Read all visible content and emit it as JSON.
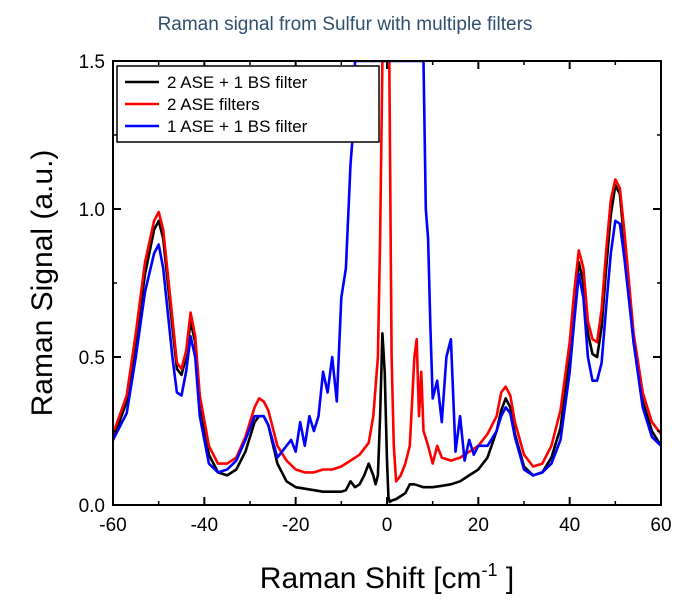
{
  "chart_data": {
    "type": "line",
    "title": "Raman signal from Sulfur with multiple filters",
    "xlabel_main": "Raman Shift [cm",
    "xlabel_sup": "-1",
    "xlabel_close": " ]",
    "ylabel": "Raman Signal (a.u.)",
    "xlim": [
      -60,
      60
    ],
    "ylim": [
      0.0,
      1.5
    ],
    "xticks": [
      -60,
      -40,
      -20,
      0,
      20,
      40,
      60
    ],
    "xtick_labels": [
      "-60",
      "-40",
      "-20",
      "0",
      "20",
      "40",
      "60"
    ],
    "yticks": [
      0.0,
      0.5,
      1.0,
      1.5
    ],
    "ytick_labels": [
      "0.0",
      "0.5",
      "1.0",
      "1.5"
    ],
    "grid": false,
    "legend_position": "top-left",
    "series": [
      {
        "name": "2 ASE + 1 BS filter",
        "color": "#000000",
        "x": [
          -60,
          -57,
          -55,
          -53,
          -51,
          -50,
          -49,
          -47,
          -46,
          -45,
          -44,
          -43,
          -42,
          -41,
          -39,
          -37,
          -35,
          -33,
          -31,
          -29,
          -28,
          -27,
          -26,
          -24,
          -22,
          -20,
          -18,
          -16,
          -14,
          -12,
          -10,
          -9,
          -8,
          -7,
          -6,
          -5,
          -4,
          -3,
          -2.5,
          -2,
          -1.5,
          -1,
          -0.5,
          0,
          0.3,
          0.6,
          1,
          2,
          3,
          4,
          5,
          6,
          7,
          8,
          10,
          12,
          14,
          16,
          18,
          20,
          22,
          24,
          25,
          26,
          27,
          28,
          30,
          32,
          34,
          36,
          38,
          40,
          41,
          42,
          43,
          44,
          45,
          46,
          47,
          48,
          49,
          50,
          51,
          52,
          54,
          56,
          58,
          60
        ],
        "y": [
          0.22,
          0.35,
          0.55,
          0.78,
          0.93,
          0.96,
          0.9,
          0.6,
          0.46,
          0.44,
          0.5,
          0.62,
          0.55,
          0.35,
          0.17,
          0.11,
          0.1,
          0.12,
          0.18,
          0.28,
          0.3,
          0.3,
          0.27,
          0.14,
          0.08,
          0.06,
          0.055,
          0.05,
          0.045,
          0.045,
          0.045,
          0.05,
          0.08,
          0.06,
          0.07,
          0.1,
          0.14,
          0.1,
          0.07,
          0.1,
          0.3,
          0.58,
          0.45,
          0.15,
          0.03,
          0.01,
          0.015,
          0.02,
          0.03,
          0.04,
          0.07,
          0.07,
          0.065,
          0.06,
          0.06,
          0.065,
          0.07,
          0.08,
          0.1,
          0.12,
          0.16,
          0.25,
          0.32,
          0.36,
          0.33,
          0.24,
          0.13,
          0.1,
          0.11,
          0.16,
          0.26,
          0.5,
          0.68,
          0.82,
          0.75,
          0.58,
          0.51,
          0.5,
          0.6,
          0.8,
          0.98,
          1.08,
          1.05,
          0.88,
          0.55,
          0.35,
          0.25,
          0.2
        ]
      },
      {
        "name": "2 ASE filters",
        "color": "#ff0000",
        "x": [
          -60,
          -57,
          -55,
          -53,
          -51,
          -50,
          -49,
          -47,
          -46,
          -45,
          -44,
          -43,
          -42,
          -41,
          -39,
          -37,
          -35,
          -33,
          -31,
          -29,
          -28,
          -27,
          -26,
          -24,
          -22,
          -20,
          -18,
          -16,
          -14,
          -12,
          -10,
          -8,
          -6,
          -4,
          -3,
          -2,
          -1.5,
          -1,
          -0.5,
          0,
          0.5,
          1,
          1.5,
          2,
          3,
          4,
          5,
          6,
          6.5,
          7,
          7.5,
          8,
          9,
          10,
          11,
          12,
          14,
          16,
          18,
          20,
          22,
          24,
          25,
          26,
          27,
          28,
          30,
          32,
          34,
          36,
          38,
          40,
          41,
          42,
          43,
          44,
          45,
          46,
          47,
          48,
          49,
          50,
          51,
          52,
          54,
          56,
          58,
          60
        ],
        "y": [
          0.24,
          0.37,
          0.58,
          0.82,
          0.96,
          0.99,
          0.93,
          0.63,
          0.48,
          0.46,
          0.52,
          0.65,
          0.57,
          0.37,
          0.2,
          0.14,
          0.14,
          0.16,
          0.23,
          0.33,
          0.36,
          0.35,
          0.32,
          0.2,
          0.15,
          0.12,
          0.11,
          0.11,
          0.12,
          0.12,
          0.13,
          0.15,
          0.17,
          0.21,
          0.3,
          0.5,
          0.9,
          1.5,
          1.5,
          1.5,
          1.5,
          0.5,
          0.2,
          0.08,
          0.1,
          0.14,
          0.2,
          0.5,
          0.56,
          0.3,
          0.45,
          0.25,
          0.2,
          0.14,
          0.2,
          0.16,
          0.15,
          0.16,
          0.18,
          0.2,
          0.24,
          0.3,
          0.38,
          0.4,
          0.37,
          0.28,
          0.17,
          0.13,
          0.14,
          0.2,
          0.32,
          0.55,
          0.72,
          0.86,
          0.8,
          0.62,
          0.56,
          0.55,
          0.66,
          0.86,
          1.03,
          1.1,
          1.07,
          0.92,
          0.58,
          0.38,
          0.28,
          0.24
        ]
      },
      {
        "name": "1 ASE + 1 BS filter",
        "color": "#0000ff",
        "x": [
          -60,
          -57,
          -55,
          -53,
          -51,
          -50,
          -49,
          -47,
          -46,
          -45,
          -44,
          -43,
          -42,
          -41,
          -39,
          -37,
          -35,
          -33,
          -31,
          -29,
          -28,
          -27,
          -26,
          -24,
          -22,
          -21,
          -20,
          -19,
          -18,
          -17,
          -16,
          -15,
          -14,
          -13,
          -12,
          -11,
          -10,
          -9,
          -8,
          -7.5,
          -7,
          8,
          8.5,
          9,
          9.5,
          10,
          11,
          12,
          13,
          14,
          15,
          16,
          17,
          18,
          19,
          20,
          21,
          22,
          24,
          25,
          26,
          27,
          28,
          30,
          32,
          34,
          36,
          38,
          40,
          41,
          42,
          43,
          44,
          45,
          46,
          47,
          48,
          49,
          50,
          51,
          52,
          54,
          56,
          58,
          60
        ],
        "y": [
          0.22,
          0.31,
          0.5,
          0.72,
          0.85,
          0.88,
          0.8,
          0.5,
          0.38,
          0.37,
          0.45,
          0.57,
          0.5,
          0.3,
          0.14,
          0.11,
          0.12,
          0.15,
          0.22,
          0.3,
          0.3,
          0.3,
          0.27,
          0.16,
          0.2,
          0.22,
          0.18,
          0.28,
          0.2,
          0.3,
          0.25,
          0.3,
          0.45,
          0.38,
          0.5,
          0.35,
          0.7,
          0.8,
          1.15,
          1.25,
          1.5,
          1.5,
          1.0,
          0.9,
          0.6,
          0.36,
          0.42,
          0.28,
          0.5,
          0.56,
          0.18,
          0.3,
          0.15,
          0.22,
          0.17,
          0.2,
          0.2,
          0.2,
          0.25,
          0.3,
          0.33,
          0.31,
          0.23,
          0.12,
          0.1,
          0.11,
          0.14,
          0.22,
          0.45,
          0.62,
          0.78,
          0.7,
          0.5,
          0.42,
          0.42,
          0.48,
          0.67,
          0.85,
          0.96,
          0.95,
          0.83,
          0.55,
          0.33,
          0.23,
          0.2
        ]
      }
    ]
  }
}
